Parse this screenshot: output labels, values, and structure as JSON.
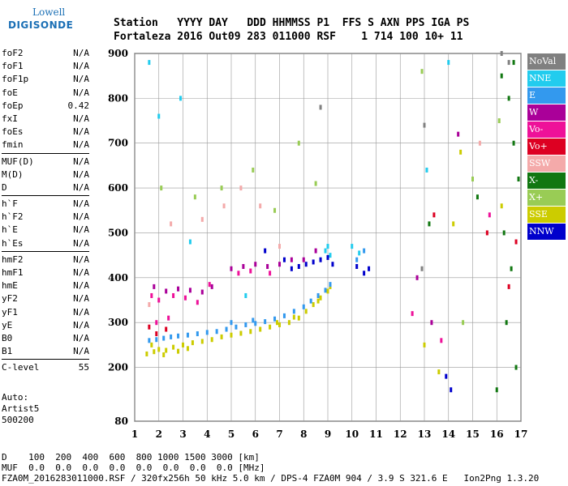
{
  "logo": {
    "line1": "Lowell",
    "line2": "DIGISONDE"
  },
  "header": {
    "line1": "Station   YYYY DAY   DDD HHMMSS P1  FFS S AXN PPS IGA PS",
    "line2": "Fortaleza 2016 Out09 283 011000 RSF    1 714 100 10+ 11"
  },
  "params": [
    [
      [
        "foF2",
        "N/A"
      ],
      [
        "foF1",
        "N/A"
      ],
      [
        "foF1p",
        "N/A"
      ],
      [
        "foE",
        "N/A"
      ],
      [
        "foEp",
        "0.42"
      ],
      [
        "fxI",
        "N/A"
      ],
      [
        "foEs",
        "N/A"
      ],
      [
        "fmin",
        "N/A"
      ]
    ],
    [
      [
        "MUF(D)",
        "N/A"
      ],
      [
        "M(D)",
        "N/A"
      ],
      [
        "D",
        "N/A"
      ]
    ],
    [
      [
        "h`F",
        "N/A"
      ],
      [
        "h`F2",
        "N/A"
      ],
      [
        "h`E",
        "N/A"
      ],
      [
        "h`Es",
        "N/A"
      ]
    ],
    [
      [
        "hmF2",
        "N/A"
      ],
      [
        "hmF1",
        "N/A"
      ],
      [
        "hmE",
        "N/A"
      ],
      [
        "yF2",
        "N/A"
      ],
      [
        "yF1",
        "N/A"
      ],
      [
        "yE",
        "N/A"
      ],
      [
        "B0",
        "N/A"
      ],
      [
        "B1",
        "N/A"
      ]
    ],
    [
      [
        "C-level",
        "55"
      ]
    ]
  ],
  "auto": {
    "line1": "Auto:",
    "line2": "Artist5",
    "line3": "500200"
  },
  "legend": [
    {
      "label": "NoVal",
      "color": "#808080"
    },
    {
      "label": "NNE",
      "color": "#22ccee"
    },
    {
      "label": "E",
      "color": "#3399ee"
    },
    {
      "label": "W",
      "color": "#aa0099"
    },
    {
      "label": "Vo-",
      "color": "#ee1199"
    },
    {
      "label": "Vo+",
      "color": "#dd0022"
    },
    {
      "label": "SSW",
      "color": "#f4aaaa"
    },
    {
      "label": "X-",
      "color": "#117711"
    },
    {
      "label": "X+",
      "color": "#99cc55"
    },
    {
      "label": "SSE",
      "color": "#cccc00"
    },
    {
      "label": "NNW",
      "color": "#0000cc"
    }
  ],
  "footer": {
    "line1": "D    100  200  400  600  800 1000 1500 3000 [km]",
    "line2": "MUF  0.0  0.0  0.0  0.0  0.0  0.0  0.0  0.0 [MHz]",
    "line3": "FZA0M_2016283011000.RSF / 320fx256h 50 kHz 5.0 km / DPS-4 FZA0M 904 / 3.9 S 321.6 E   Ion2Png 1.3.20"
  },
  "chart_data": {
    "type": "scatter",
    "xlim": [
      1,
      17
    ],
    "ylim": [
      80,
      900
    ],
    "xticks": [
      "1",
      "2",
      "3",
      "4",
      "5",
      "6",
      "7",
      "8",
      "9",
      "10",
      "11",
      "12",
      "13",
      "14",
      "15",
      "16",
      "17"
    ],
    "yticks": [
      "80",
      "200",
      "300",
      "400",
      "500",
      "600",
      "700",
      "800",
      "900"
    ],
    "grid": true,
    "legend_position": "right",
    "series": [
      {
        "color": "#cccc00",
        "points": [
          [
            1.5,
            230
          ],
          [
            1.8,
            235
          ],
          [
            2.0,
            240
          ],
          [
            2.3,
            238
          ],
          [
            2.6,
            245
          ],
          [
            3.0,
            250
          ],
          [
            3.4,
            255
          ],
          [
            3.8,
            258
          ],
          [
            4.2,
            262
          ],
          [
            4.6,
            268
          ],
          [
            5.0,
            272
          ],
          [
            5.4,
            276
          ],
          [
            5.8,
            280
          ],
          [
            6.2,
            285
          ],
          [
            6.6,
            290
          ],
          [
            7.0,
            295
          ],
          [
            7.4,
            300
          ],
          [
            7.8,
            310
          ],
          [
            8.1,
            325
          ],
          [
            8.4,
            340
          ],
          [
            8.7,
            355
          ],
          [
            9.0,
            370
          ],
          [
            9.1,
            380
          ],
          [
            1.7,
            250
          ],
          [
            2.2,
            228
          ],
          [
            2.8,
            236
          ],
          [
            3.2,
            242
          ],
          [
            6.9,
            300
          ],
          [
            7.6,
            312
          ],
          [
            8.6,
            348
          ],
          [
            13.0,
            250
          ],
          [
            13.6,
            190
          ],
          [
            14.2,
            520
          ],
          [
            14.5,
            680
          ],
          [
            16.2,
            560
          ]
        ]
      },
      {
        "color": "#3399ee",
        "points": [
          [
            1.6,
            260
          ],
          [
            1.9,
            262
          ],
          [
            2.2,
            265
          ],
          [
            2.5,
            268
          ],
          [
            2.8,
            270
          ],
          [
            3.2,
            272
          ],
          [
            3.6,
            275
          ],
          [
            4.0,
            278
          ],
          [
            4.4,
            280
          ],
          [
            4.8,
            285
          ],
          [
            5.2,
            290
          ],
          [
            5.6,
            295
          ],
          [
            6.0,
            298
          ],
          [
            6.4,
            302
          ],
          [
            6.8,
            308
          ],
          [
            7.2,
            315
          ],
          [
            7.6,
            325
          ],
          [
            8.0,
            335
          ],
          [
            8.3,
            348
          ],
          [
            8.6,
            360
          ],
          [
            8.9,
            372
          ],
          [
            9.1,
            385
          ],
          [
            10.2,
            440
          ],
          [
            10.5,
            460
          ],
          [
            5.0,
            300
          ],
          [
            5.9,
            305
          ]
        ]
      },
      {
        "color": "#22ccee",
        "points": [
          [
            8.9,
            460
          ],
          [
            9.0,
            470
          ],
          [
            9.1,
            450
          ],
          [
            10.0,
            470
          ],
          [
            10.3,
            455
          ],
          [
            1.6,
            880
          ],
          [
            2.0,
            760
          ],
          [
            2.9,
            800
          ],
          [
            14.0,
            880
          ],
          [
            13.1,
            640
          ],
          [
            5.6,
            360
          ],
          [
            3.3,
            480
          ]
        ]
      },
      {
        "color": "#0000cc",
        "points": [
          [
            7.5,
            420
          ],
          [
            7.8,
            425
          ],
          [
            8.1,
            430
          ],
          [
            8.4,
            435
          ],
          [
            8.7,
            440
          ],
          [
            9.0,
            445
          ],
          [
            9.2,
            430
          ],
          [
            10.2,
            425
          ],
          [
            10.5,
            410
          ],
          [
            10.7,
            420
          ],
          [
            13.9,
            180
          ],
          [
            14.1,
            150
          ],
          [
            6.4,
            460
          ],
          [
            7.2,
            440
          ]
        ]
      },
      {
        "color": "#aa0099",
        "points": [
          [
            1.8,
            380
          ],
          [
            2.3,
            370
          ],
          [
            2.8,
            375
          ],
          [
            3.3,
            372
          ],
          [
            3.8,
            368
          ],
          [
            4.2,
            380
          ],
          [
            5.0,
            420
          ],
          [
            5.5,
            425
          ],
          [
            6.0,
            430
          ],
          [
            6.5,
            425
          ],
          [
            7.0,
            430
          ],
          [
            7.5,
            440
          ],
          [
            8.0,
            440
          ],
          [
            8.5,
            460
          ],
          [
            13.3,
            300
          ],
          [
            14.4,
            720
          ],
          [
            12.7,
            400
          ]
        ]
      },
      {
        "color": "#ee1199",
        "points": [
          [
            1.7,
            360
          ],
          [
            2.0,
            350
          ],
          [
            2.6,
            360
          ],
          [
            3.1,
            355
          ],
          [
            3.6,
            345
          ],
          [
            4.1,
            385
          ],
          [
            5.3,
            410
          ],
          [
            5.8,
            415
          ],
          [
            6.6,
            410
          ],
          [
            1.9,
            300
          ],
          [
            2.4,
            310
          ],
          [
            15.7,
            540
          ],
          [
            12.5,
            320
          ],
          [
            13.7,
            260
          ]
        ]
      },
      {
        "color": "#dd0022",
        "points": [
          [
            1.6,
            290
          ],
          [
            1.9,
            275
          ],
          [
            2.3,
            285
          ],
          [
            15.6,
            500
          ],
          [
            16.8,
            480
          ],
          [
            16.5,
            380
          ],
          [
            13.4,
            540
          ]
        ]
      },
      {
        "color": "#f4aaaa",
        "points": [
          [
            1.6,
            340
          ],
          [
            2.5,
            520
          ],
          [
            3.8,
            530
          ],
          [
            4.7,
            560
          ],
          [
            5.4,
            600
          ],
          [
            6.2,
            560
          ],
          [
            7.0,
            470
          ],
          [
            15.3,
            700
          ]
        ]
      },
      {
        "color": "#117711",
        "points": [
          [
            16.2,
            850
          ],
          [
            16.5,
            800
          ],
          [
            16.7,
            700
          ],
          [
            16.9,
            620
          ],
          [
            16.3,
            500
          ],
          [
            16.6,
            420
          ],
          [
            16.4,
            300
          ],
          [
            16.8,
            200
          ],
          [
            16.0,
            150
          ],
          [
            16.7,
            880
          ],
          [
            15.2,
            580
          ],
          [
            13.2,
            520
          ]
        ]
      },
      {
        "color": "#99cc55",
        "points": [
          [
            2.1,
            600
          ],
          [
            3.5,
            580
          ],
          [
            4.6,
            600
          ],
          [
            5.9,
            640
          ],
          [
            6.8,
            550
          ],
          [
            7.8,
            700
          ],
          [
            8.5,
            610
          ],
          [
            12.9,
            860
          ],
          [
            15.0,
            620
          ],
          [
            16.1,
            750
          ],
          [
            14.6,
            300
          ]
        ]
      },
      {
        "color": "#808080",
        "points": [
          [
            16.2,
            900
          ],
          [
            16.5,
            880
          ],
          [
            13.0,
            740
          ],
          [
            12.9,
            420
          ],
          [
            8.7,
            780
          ]
        ]
      }
    ]
  }
}
